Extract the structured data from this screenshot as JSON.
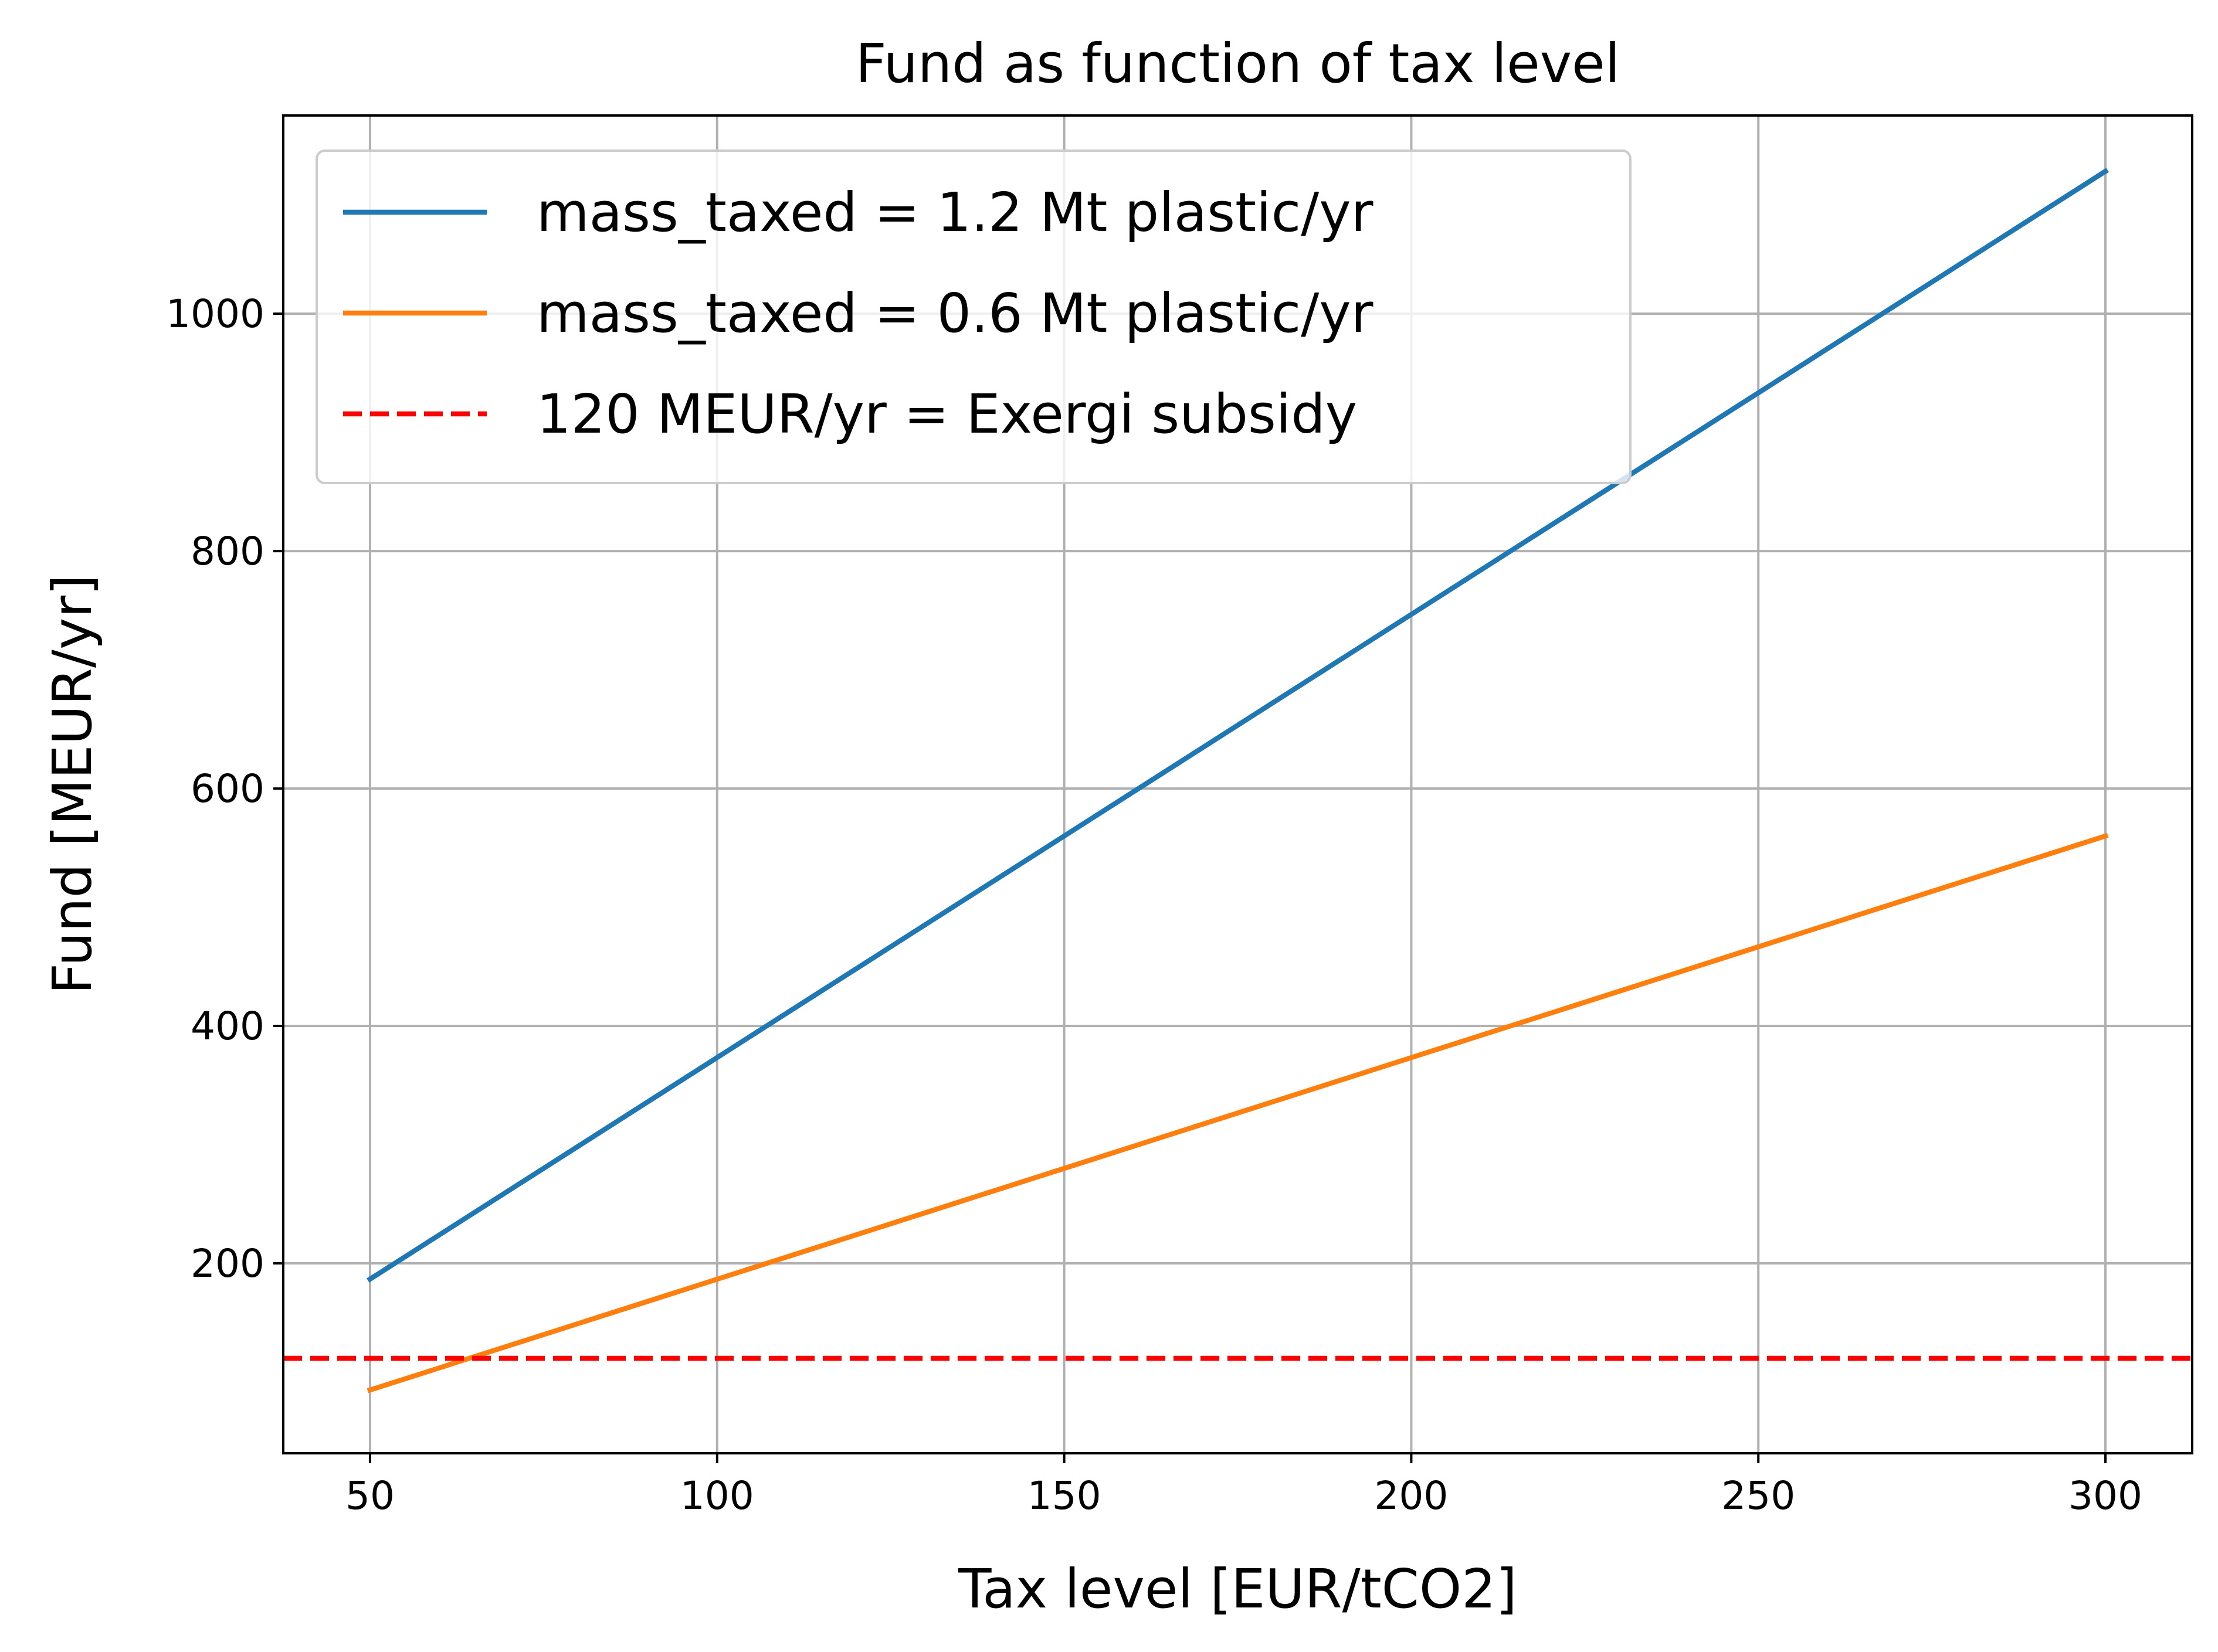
{
  "chart_data": {
    "type": "line",
    "title": "Fund as function of tax level",
    "xlabel": "Tax level [EUR/tCO2]",
    "ylabel": "Fund [MEUR/yr]",
    "xlim": [
      37.5,
      312.5
    ],
    "ylim": [
      40,
      1167
    ],
    "x_ticks": [
      50,
      100,
      150,
      200,
      250,
      300
    ],
    "y_ticks": [
      200,
      400,
      600,
      800,
      1000
    ],
    "grid": true,
    "legend_position": "top-left",
    "series": [
      {
        "name": "mass_taxed = 1.2 Mt plastic/yr",
        "color": "#1f77b4",
        "style": "solid",
        "x": [
          50,
          300
        ],
        "y": [
          186.7,
          1120
        ]
      },
      {
        "name": "mass_taxed = 0.6 Mt plastic/yr",
        "color": "#ff7f0e",
        "style": "solid",
        "x": [
          50,
          300
        ],
        "y": [
          93.3,
          560
        ]
      },
      {
        "name": "120 MEUR/yr = Exergi subsidy",
        "color": "#ff0000",
        "style": "dashed",
        "horizontal_y": 120
      }
    ]
  }
}
